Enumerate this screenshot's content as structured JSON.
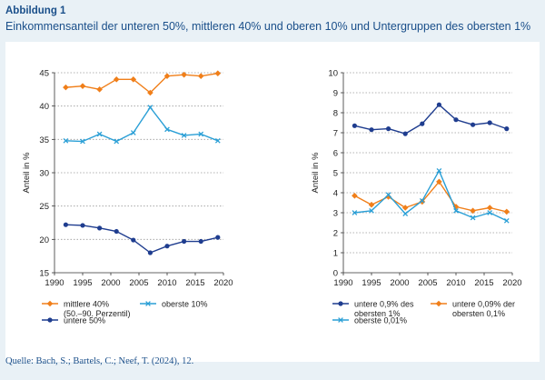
{
  "header": {
    "label": "Abbildung 1",
    "title": "Einkommensanteil der unteren 50%, mittleren 40% und oberen 10% und Untergruppen des obersten 1%"
  },
  "footer": {
    "source": "Quelle: Bach, S.; Bartels, C.; Neef, T. (2024), 12."
  },
  "colors": {
    "dark_blue": "#1f3d8f",
    "orange": "#f07f1a",
    "light_blue": "#2a9fd6",
    "grid": "#9a9a9a",
    "background": "#e9f1f6"
  },
  "chart_data": [
    {
      "type": "line",
      "ylabel": "Anteil in %",
      "xlabel": "",
      "xlim": [
        1990,
        2020
      ],
      "ylim": [
        15,
        45
      ],
      "x_ticks": [
        1990,
        1995,
        2000,
        2005,
        2010,
        2015,
        2020
      ],
      "y_ticks": [
        15,
        20,
        25,
        30,
        35,
        40,
        45
      ],
      "grid": "horizontal",
      "legend_position": "bottom",
      "series": [
        {
          "name": "mittlere 40%\n(50.–90. Perzentil)",
          "color": "#f07f1a",
          "marker": "diamond",
          "x": [
            1992,
            1995,
            1998,
            2001,
            2004,
            2007,
            2010,
            2013,
            2016,
            2019
          ],
          "y": [
            42.8,
            43.0,
            42.5,
            44.0,
            44.0,
            42.0,
            44.5,
            44.7,
            44.5,
            44.9
          ]
        },
        {
          "name": "oberste 10%",
          "color": "#2a9fd6",
          "marker": "x",
          "x": [
            1992,
            1995,
            1998,
            2001,
            2004,
            2007,
            2010,
            2013,
            2016,
            2019
          ],
          "y": [
            34.8,
            34.7,
            35.8,
            34.7,
            36.0,
            39.8,
            36.5,
            35.6,
            35.8,
            34.8
          ]
        },
        {
          "name": "untere 50%",
          "color": "#1f3d8f",
          "marker": "circle",
          "x": [
            1992,
            1995,
            1998,
            2001,
            2004,
            2007,
            2010,
            2013,
            2016,
            2019
          ],
          "y": [
            22.2,
            22.1,
            21.7,
            21.2,
            19.9,
            18.0,
            19.0,
            19.7,
            19.7,
            20.3
          ]
        }
      ]
    },
    {
      "type": "line",
      "ylabel": "Anteil in %",
      "xlabel": "",
      "xlim": [
        1990,
        2020
      ],
      "ylim": [
        0,
        10
      ],
      "x_ticks": [
        1990,
        1995,
        2000,
        2005,
        2010,
        2015,
        2020
      ],
      "y_ticks": [
        0,
        1,
        2,
        3,
        4,
        5,
        6,
        7,
        8,
        9,
        10
      ],
      "grid": "horizontal",
      "legend_position": "bottom",
      "series": [
        {
          "name": "untere 0,9% des\nobersten 1%",
          "color": "#1f3d8f",
          "marker": "circle",
          "x": [
            1992,
            1995,
            1998,
            2001,
            2004,
            2007,
            2010,
            2013,
            2016,
            2019
          ],
          "y": [
            7.35,
            7.15,
            7.2,
            6.95,
            7.45,
            8.4,
            7.65,
            7.4,
            7.5,
            7.2
          ]
        },
        {
          "name": "untere 0,09% der\nobersten 0,1%",
          "color": "#f07f1a",
          "marker": "diamond",
          "x": [
            1992,
            1995,
            1998,
            2001,
            2004,
            2007,
            2010,
            2013,
            2016,
            2019
          ],
          "y": [
            3.85,
            3.4,
            3.8,
            3.25,
            3.55,
            4.55,
            3.3,
            3.1,
            3.25,
            3.05
          ]
        },
        {
          "name": "oberste 0,01%",
          "color": "#2a9fd6",
          "marker": "x",
          "x": [
            1992,
            1995,
            1998,
            2001,
            2004,
            2007,
            2010,
            2013,
            2016,
            2019
          ],
          "y": [
            3.0,
            3.1,
            3.9,
            2.95,
            3.6,
            5.1,
            3.1,
            2.75,
            3.0,
            2.6
          ]
        }
      ]
    }
  ]
}
